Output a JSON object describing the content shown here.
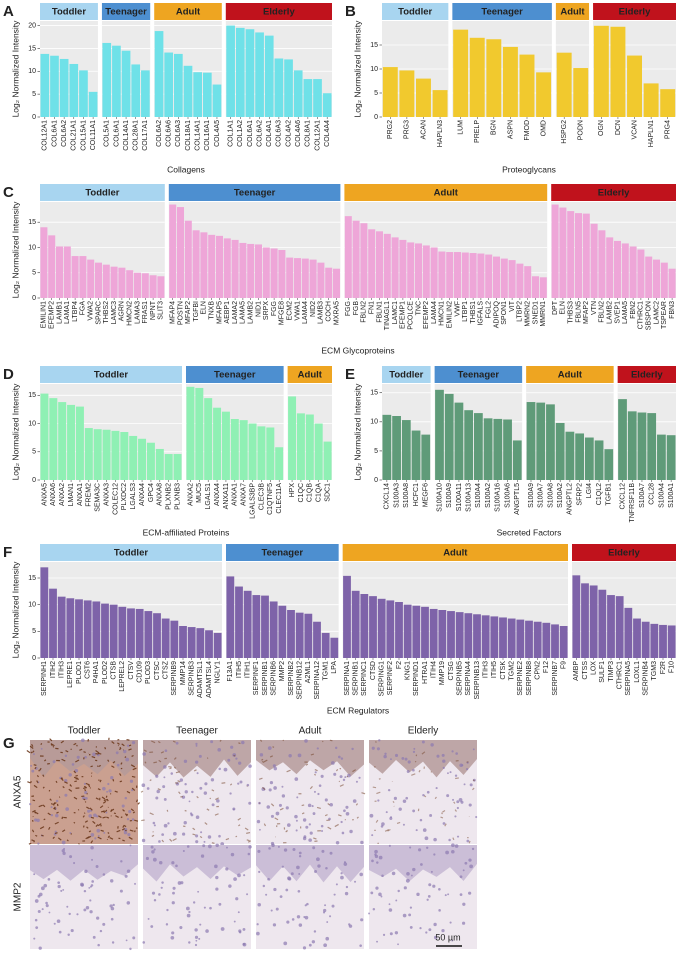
{
  "chart_data": [
    {
      "type": "bar",
      "label": "A",
      "xlabel": "Collagens",
      "ylabel": "Log₂ Normalized Intensity",
      "color": "#6fe1e8",
      "ylim": [
        0,
        21
      ],
      "yticks": [
        0,
        5,
        10,
        15,
        20
      ],
      "grid": true,
      "facets": [
        {
          "name": "Toddler",
          "strip_color": "#a8d5f0",
          "categories": [
            "COL12A1",
            "COL6A1",
            "COL6A2",
            "COL21A1",
            "COL15A1",
            "COL11A1"
          ],
          "values": [
            13.8,
            13.4,
            12.7,
            11.6,
            10.2,
            5.5
          ]
        },
        {
          "name": "Teenager",
          "strip_color": "#4d8fd0",
          "categories": [
            "COL5A1",
            "COL6A1",
            "COL14A1",
            "COL28A1",
            "COL17A1"
          ],
          "values": [
            16.2,
            15.6,
            14.5,
            11.5,
            10.2
          ]
        },
        {
          "name": "Adult",
          "strip_color": "#eea521",
          "categories": [
            "COL6A2",
            "COL6A6",
            "COL6A3",
            "COL18A1",
            "COL14A1",
            "COL16A1",
            "COL4A5"
          ],
          "values": [
            18.8,
            14.1,
            13.8,
            11.2,
            9.8,
            9.7,
            7.1
          ]
        },
        {
          "name": "Elderly",
          "strip_color": "#c0121c",
          "categories": [
            "COL1A1",
            "COL1A2",
            "COL6A1",
            "COL6A2",
            "COL4A1",
            "COL6A3",
            "COL4A2",
            "COL4A6",
            "COL8A1",
            "COL12A1",
            "COL4A4"
          ],
          "values": [
            20.0,
            19.5,
            19.2,
            18.5,
            17.8,
            12.8,
            12.6,
            10.2,
            8.3,
            8.3,
            5.2
          ]
        }
      ]
    },
    {
      "type": "bar",
      "label": "B",
      "xlabel": "Proteoglycans",
      "ylabel": "Log₂ Normalized Intensity",
      "color": "#f1c92e",
      "ylim": [
        0,
        20
      ],
      "yticks": [
        0,
        5,
        10,
        15
      ],
      "grid": true,
      "facets": [
        {
          "name": "Toddler",
          "strip_color": "#a8d5f0",
          "categories": [
            "PRG2",
            "PRG3",
            "ACAN",
            "HAPLN3"
          ],
          "values": [
            10.4,
            9.7,
            8.0,
            5.6
          ]
        },
        {
          "name": "Teenager",
          "strip_color": "#4d8fd0",
          "categories": [
            "LUM",
            "PRELP",
            "BGN",
            "ASPN",
            "FMOD",
            "OMD"
          ],
          "values": [
            18.2,
            16.5,
            16.2,
            14.6,
            13.0,
            9.3
          ]
        },
        {
          "name": "Adult",
          "strip_color": "#eea521",
          "categories": [
            "HSPG2",
            "PODN"
          ],
          "values": [
            13.4,
            10.2
          ]
        },
        {
          "name": "Elderly",
          "strip_color": "#c0121c",
          "categories": [
            "OGN",
            "DCN",
            "VCAN",
            "HAPLN1",
            "PRG4"
          ],
          "values": [
            19.0,
            18.8,
            12.8,
            7.0,
            5.8
          ]
        }
      ]
    },
    {
      "type": "bar",
      "label": "C",
      "xlabel": "ECM Glycoproteins",
      "ylabel": "Log₂ Normalized Intensity",
      "color": "#eea6d8",
      "ylim": [
        0,
        19
      ],
      "yticks": [
        0,
        5,
        10,
        15
      ],
      "grid": true,
      "facets": [
        {
          "name": "Toddler",
          "strip_color": "#a8d5f0",
          "categories": [
            "EMILIN1",
            "EFEMP2",
            "LAMB1",
            "LAMA1",
            "LTBP4",
            "FGA",
            "VWA2",
            "SPARC",
            "THBS2",
            "LAMC3",
            "AGRN",
            "HMCN2",
            "LAMA3",
            "FRAS1",
            "NPNT",
            "SLIT3"
          ],
          "values": [
            14.0,
            12.4,
            10.2,
            10.2,
            8.3,
            8.3,
            7.6,
            7.0,
            6.6,
            6.2,
            6.0,
            5.5,
            5.0,
            4.9,
            4.5,
            4.3
          ]
        },
        {
          "name": "Teenager",
          "strip_color": "#4d8fd0",
          "categories": [
            "MFAP4",
            "POSTN",
            "MFAP2",
            "TGFBI",
            "ELN",
            "TNXB",
            "MFAP5",
            "AEBP1",
            "LAMA2",
            "LAMA5",
            "LAMB2",
            "NID1",
            "SRPX",
            "FGG",
            "MFGE8",
            "ECM2",
            "VWA1",
            "LAMA4",
            "NID2",
            "LAMB3",
            "COCH",
            "MXRA5"
          ],
          "values": [
            18.5,
            18.0,
            15.3,
            13.4,
            13.0,
            12.5,
            12.3,
            11.8,
            11.5,
            10.9,
            10.7,
            10.6,
            10.0,
            9.8,
            9.5,
            8.0,
            7.9,
            7.8,
            7.6,
            7.0,
            6.0,
            5.8
          ]
        },
        {
          "name": "Adult",
          "strip_color": "#eea521",
          "categories": [
            "FGG",
            "FGB",
            "FBLN2",
            "FN1",
            "FBLN1",
            "TINAGL1",
            "LAMC1",
            "EFEMP1",
            "PCOLCE",
            "TNC",
            "EFEMP2",
            "LAMA4",
            "HMCN1",
            "EMILIN2",
            "VWF",
            "LTBP1",
            "THBS1",
            "IGFALS",
            "FGL2",
            "ADIPOQ",
            "SPON1",
            "VIT",
            "LTBP2",
            "MMRN2",
            "SNED1",
            "MMRN1"
          ],
          "values": [
            16.2,
            15.3,
            14.8,
            13.6,
            13.2,
            12.7,
            12.0,
            11.5,
            11.0,
            10.8,
            10.4,
            10.0,
            9.2,
            9.1,
            9.1,
            9.0,
            8.9,
            8.8,
            8.6,
            8.2,
            7.8,
            7.5,
            6.8,
            6.3,
            4.3,
            4.1
          ]
        },
        {
          "name": "Elderly",
          "strip_color": "#c0121c",
          "categories": [
            "DPT",
            "ELN",
            "THBS3",
            "FBLN5",
            "MFAP2",
            "VTN",
            "FBLN2",
            "LAMB2",
            "SVEP1",
            "LAMA5",
            "FBN2",
            "CTHRC1",
            "SBSPON",
            "LAMC2",
            "TSPEAR",
            "FBN3"
          ],
          "values": [
            18.5,
            17.9,
            17.2,
            16.8,
            16.7,
            14.7,
            13.4,
            12.0,
            11.3,
            10.8,
            10.2,
            9.6,
            8.2,
            7.6,
            7.0,
            5.8
          ]
        }
      ]
    },
    {
      "type": "bar",
      "label": "D",
      "xlabel": "ECM-affiliated Proteins",
      "ylabel": "Log₂ Normalized Intensity",
      "color": "#8ff0b4",
      "ylim": [
        0,
        17
      ],
      "yticks": [
        0,
        5,
        10,
        15
      ],
      "grid": true,
      "facets": [
        {
          "name": "Toddler",
          "strip_color": "#a8d5f0",
          "categories": [
            "ANXA5",
            "ANXA6",
            "ANXA2",
            "LMAN1",
            "ANXA1",
            "FREM2",
            "SEMA3C",
            "ANXA3",
            "COLEC12",
            "PLXDC2",
            "LGALS3",
            "ANXA4",
            "GPC4",
            "ANXA8",
            "PLXNB2",
            "PLXNB3"
          ],
          "values": [
            15.3,
            14.5,
            13.8,
            13.3,
            13.0,
            9.2,
            9.0,
            8.9,
            8.7,
            8.5,
            7.8,
            7.3,
            6.6,
            5.5,
            4.6,
            4.6
          ]
        },
        {
          "name": "Teenager",
          "strip_color": "#4d8fd0",
          "categories": [
            "ANXA2",
            "MUC5",
            "LGALS1",
            "ANXA4",
            "ANXA11",
            "ANXA1",
            "ANXA7",
            "LGALS3BP",
            "CLEC3B",
            "C1QTNF5",
            "CLEC11A"
          ],
          "values": [
            16.5,
            16.3,
            14.5,
            12.8,
            12.1,
            10.8,
            10.6,
            10.0,
            9.5,
            9.3,
            5.8
          ]
        },
        {
          "name": "Adult",
          "strip_color": "#eea521",
          "categories": [
            "HPX",
            "C1QC",
            "C1QB",
            "C1QA",
            "SDC1"
          ],
          "values": [
            14.8,
            11.8,
            11.6,
            10.0,
            6.8
          ]
        }
      ]
    },
    {
      "type": "bar",
      "label": "E",
      "xlabel": "Secreted Factors",
      "ylabel": "Log₂ Normalized Intensity",
      "color": "#5f9b79",
      "ylim": [
        0,
        16.5
      ],
      "yticks": [
        0,
        5,
        10,
        15
      ],
      "grid": true,
      "facets": [
        {
          "name": "Toddler",
          "strip_color": "#a8d5f0",
          "categories": [
            "CXCL14",
            "S100A3",
            "S100A8",
            "HCFC1",
            "MEGF6"
          ],
          "values": [
            11.2,
            11.0,
            10.3,
            8.5,
            7.8
          ]
        },
        {
          "name": "Teenager",
          "strip_color": "#4d8fd0",
          "categories": [
            "S100A10",
            "S100A9",
            "S100A11",
            "S100A13",
            "S100A4",
            "S100A2",
            "S100A16",
            "S100A6",
            "ANGPTL5"
          ],
          "values": [
            15.5,
            14.8,
            13.3,
            12.0,
            11.5,
            10.6,
            10.5,
            10.4,
            6.8
          ]
        },
        {
          "name": "Adult",
          "strip_color": "#eea521",
          "categories": [
            "S100A9",
            "S100A7",
            "S100A8",
            "S100A2",
            "ANGPTL2",
            "SFRP2",
            "LGI4",
            "C1QL2",
            "TGFB1"
          ],
          "values": [
            13.4,
            13.3,
            13.0,
            9.8,
            8.3,
            8.0,
            7.3,
            6.8,
            5.3
          ]
        },
        {
          "name": "Elderly",
          "strip_color": "#c0121c",
          "categories": [
            "CXCL12",
            "TNFRSF11B",
            "S100A7",
            "CCL28",
            "S100A4",
            "S100A1"
          ],
          "values": [
            13.9,
            11.8,
            11.6,
            11.5,
            7.8,
            7.7
          ]
        }
      ]
    },
    {
      "type": "bar",
      "label": "F",
      "xlabel": "ECM Regulators",
      "ylabel": "Log₂ Normalized Intensity",
      "color": "#7e63a9",
      "ylim": [
        0,
        18
      ],
      "yticks": [
        0,
        5,
        10,
        15
      ],
      "grid": true,
      "facets": [
        {
          "name": "Toddler",
          "strip_color": "#a8d5f0",
          "categories": [
            "SERPINH1",
            "ITIH2",
            "ITIH3",
            "LEPRE1",
            "PLOD1",
            "CST6",
            "P4HA1",
            "PLOD2",
            "CTSB",
            "LEPREL2",
            "CTSV",
            "CD109",
            "PLOD3",
            "CTSC",
            "CTSZ",
            "SERPINB9",
            "MMP14",
            "SERPINB3",
            "ADAMTSL1",
            "ADAMTSL4",
            "NGLY1"
          ],
          "values": [
            17.0,
            13.0,
            11.5,
            11.2,
            11.0,
            10.8,
            10.6,
            10.2,
            10.0,
            9.6,
            9.3,
            9.2,
            8.8,
            8.4,
            7.4,
            7.0,
            6.0,
            5.8,
            5.6,
            5.2,
            4.7
          ]
        },
        {
          "name": "Teenager",
          "strip_color": "#4d8fd0",
          "categories": [
            "F13A1",
            "ITIH5",
            "ITIH1",
            "SERPINF1",
            "SERPINB1",
            "SERPINB6",
            "MMP2",
            "SERPINB2",
            "SERPINB12",
            "A2ML1",
            "SERPINA12",
            "TGM1",
            "LPA"
          ],
          "values": [
            15.3,
            13.4,
            12.6,
            11.8,
            11.7,
            10.6,
            9.8,
            9.0,
            8.5,
            8.3,
            6.8,
            4.7,
            3.8
          ]
        },
        {
          "name": "Adult",
          "strip_color": "#eea521",
          "categories": [
            "SERPINA1",
            "SERPINB1",
            "SERPINC1",
            "CTSD",
            "SERPING1",
            "SERPINF2",
            "F2",
            "KNG1",
            "SERPIND1",
            "HTRA1",
            "ITIH4",
            "MMP19",
            "CTSG",
            "SERPINB5",
            "SERPINA4",
            "SERPINB13",
            "ITIH3",
            "ITIH5",
            "CTSK",
            "TGM2",
            "SERPINE2",
            "SERPINB8",
            "CPN2",
            "F12",
            "SERPINB7",
            "F9"
          ],
          "values": [
            15.4,
            12.6,
            12.0,
            11.6,
            11.1,
            10.8,
            10.5,
            10.0,
            9.8,
            9.6,
            9.2,
            9.0,
            8.8,
            8.6,
            8.4,
            8.2,
            8.0,
            7.8,
            7.6,
            7.4,
            7.2,
            7.0,
            6.8,
            6.6,
            6.3,
            6.0
          ]
        },
        {
          "name": "Elderly",
          "strip_color": "#c0121c",
          "categories": [
            "AMBP",
            "CTSS",
            "LOX",
            "SULF1",
            "TIMP3",
            "CTHRC1",
            "SERPINA5",
            "LOXL1",
            "SERPINB4",
            "TGM3",
            "F2R",
            "F10"
          ],
          "values": [
            15.5,
            14.0,
            13.6,
            12.8,
            11.8,
            11.6,
            9.4,
            7.4,
            6.8,
            6.4,
            6.2,
            6.1
          ]
        }
      ]
    }
  ],
  "figure_g": {
    "label": "G",
    "columns": [
      "Toddler",
      "Teenager",
      "Adult",
      "Elderly"
    ],
    "rows": [
      "ANXA5",
      "MMP2"
    ],
    "scale_bar": "50 µm"
  }
}
